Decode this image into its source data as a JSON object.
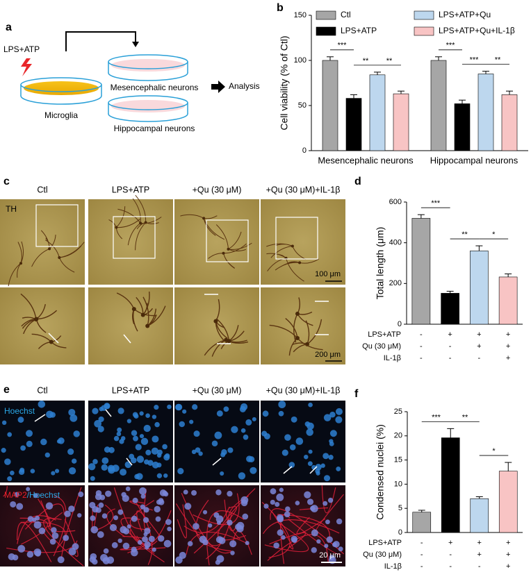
{
  "panel_labels": [
    "a",
    "b",
    "c",
    "d",
    "e",
    "f"
  ],
  "schematic": {
    "stimulus": "LPS+ATP",
    "source": "Microglia",
    "targets": [
      "Mesencephalic neurons",
      "Hippocampal neurons"
    ],
    "output": "Analysis"
  },
  "micrographs": {
    "columns": [
      "Ctl",
      "LPS+ATP",
      "+Qu (30 μM)",
      "+Qu (30 μM)+IL-1β"
    ],
    "th_stain": "TH",
    "th_scale_top": "100 μm",
    "th_scale_bottom": "200 μm",
    "nuclei_stain": "Hoechst",
    "merge_stain": [
      "MAP2",
      "/Hoechst"
    ],
    "nuclei_scale": "20 μm"
  },
  "chart_data": [
    {
      "type": "grouped_bar",
      "ylabel": "Cell viability (% of Ctl)",
      "categories": [
        "Mesencephalic neurons",
        "Hippocampal neurons"
      ],
      "series": [
        {
          "name": "Ctl",
          "color": "#a6a6a6",
          "values": [
            100,
            100
          ],
          "errors": [
            4,
            4
          ]
        },
        {
          "name": "LPS+ATP",
          "color": "#000000",
          "values": [
            58,
            52
          ],
          "errors": [
            4,
            4
          ]
        },
        {
          "name": "LPS+ATP+Qu",
          "color": "#bdd7ee",
          "values": [
            84,
            85
          ],
          "errors": [
            3,
            3
          ]
        },
        {
          "name": "LPS+ATP+Qu+IL-1β",
          "color": "#f8c4c4",
          "values": [
            63,
            62
          ],
          "errors": [
            3,
            4
          ]
        }
      ],
      "ylim": [
        0,
        150
      ],
      "yticks": [
        0,
        50,
        100,
        150
      ],
      "annotations": [
        {
          "text": "***",
          "group": 0,
          "between": [
            0,
            1
          ]
        },
        {
          "text": "**",
          "group": 0,
          "between": [
            1,
            2
          ]
        },
        {
          "text": "**",
          "group": 0,
          "between": [
            2,
            3
          ]
        },
        {
          "text": "***",
          "group": 1,
          "between": [
            0,
            1
          ]
        },
        {
          "text": "***",
          "group": 1,
          "between": [
            1,
            2
          ]
        },
        {
          "text": "**",
          "group": 1,
          "between": [
            2,
            3
          ]
        }
      ]
    },
    {
      "type": "bar",
      "ylabel": "Total length (μm)",
      "values": [
        520,
        152,
        360,
        232
      ],
      "errors": [
        18,
        10,
        25,
        15
      ],
      "colors": [
        "#a6a6a6",
        "#000000",
        "#bdd7ee",
        "#f8c4c4"
      ],
      "ylim": [
        0,
        600
      ],
      "yticks": [
        0,
        200,
        400,
        600
      ],
      "conditions": [
        {
          "name": "LPS+ATP",
          "signs": [
            "-",
            "+",
            "+",
            "+"
          ]
        },
        {
          "name": "Qu (30 μM)",
          "signs": [
            "-",
            "-",
            "+",
            "+"
          ]
        },
        {
          "name": "IL-1β",
          "signs": [
            "-",
            "-",
            "-",
            "+"
          ]
        }
      ],
      "annotations": [
        {
          "text": "***",
          "between": [
            0,
            1
          ]
        },
        {
          "text": "**",
          "between": [
            1,
            2
          ]
        },
        {
          "text": "*",
          "between": [
            2,
            3
          ]
        }
      ]
    },
    {
      "type": "bar",
      "ylabel": "Condensed nuclei (%)",
      "values": [
        4.2,
        19.6,
        7.0,
        12.7
      ],
      "errors": [
        0.4,
        1.9,
        0.4,
        1.8
      ],
      "colors": [
        "#a6a6a6",
        "#000000",
        "#bdd7ee",
        "#f8c4c4"
      ],
      "ylim": [
        0,
        25
      ],
      "yticks": [
        0,
        5,
        10,
        15,
        20,
        25
      ],
      "conditions": [
        {
          "name": "LPS+ATP",
          "signs": [
            "-",
            "+",
            "+",
            "+"
          ]
        },
        {
          "name": "Qu (30 μM)",
          "signs": [
            "-",
            "-",
            "+",
            "+"
          ]
        },
        {
          "name": "IL-1β",
          "signs": [
            "-",
            "-",
            "-",
            "+"
          ]
        }
      ],
      "annotations": [
        {
          "text": "***",
          "between": [
            0,
            1
          ]
        },
        {
          "text": "**",
          "between": [
            1,
            2
          ]
        },
        {
          "text": "*",
          "between": [
            2,
            3
          ]
        }
      ]
    }
  ]
}
